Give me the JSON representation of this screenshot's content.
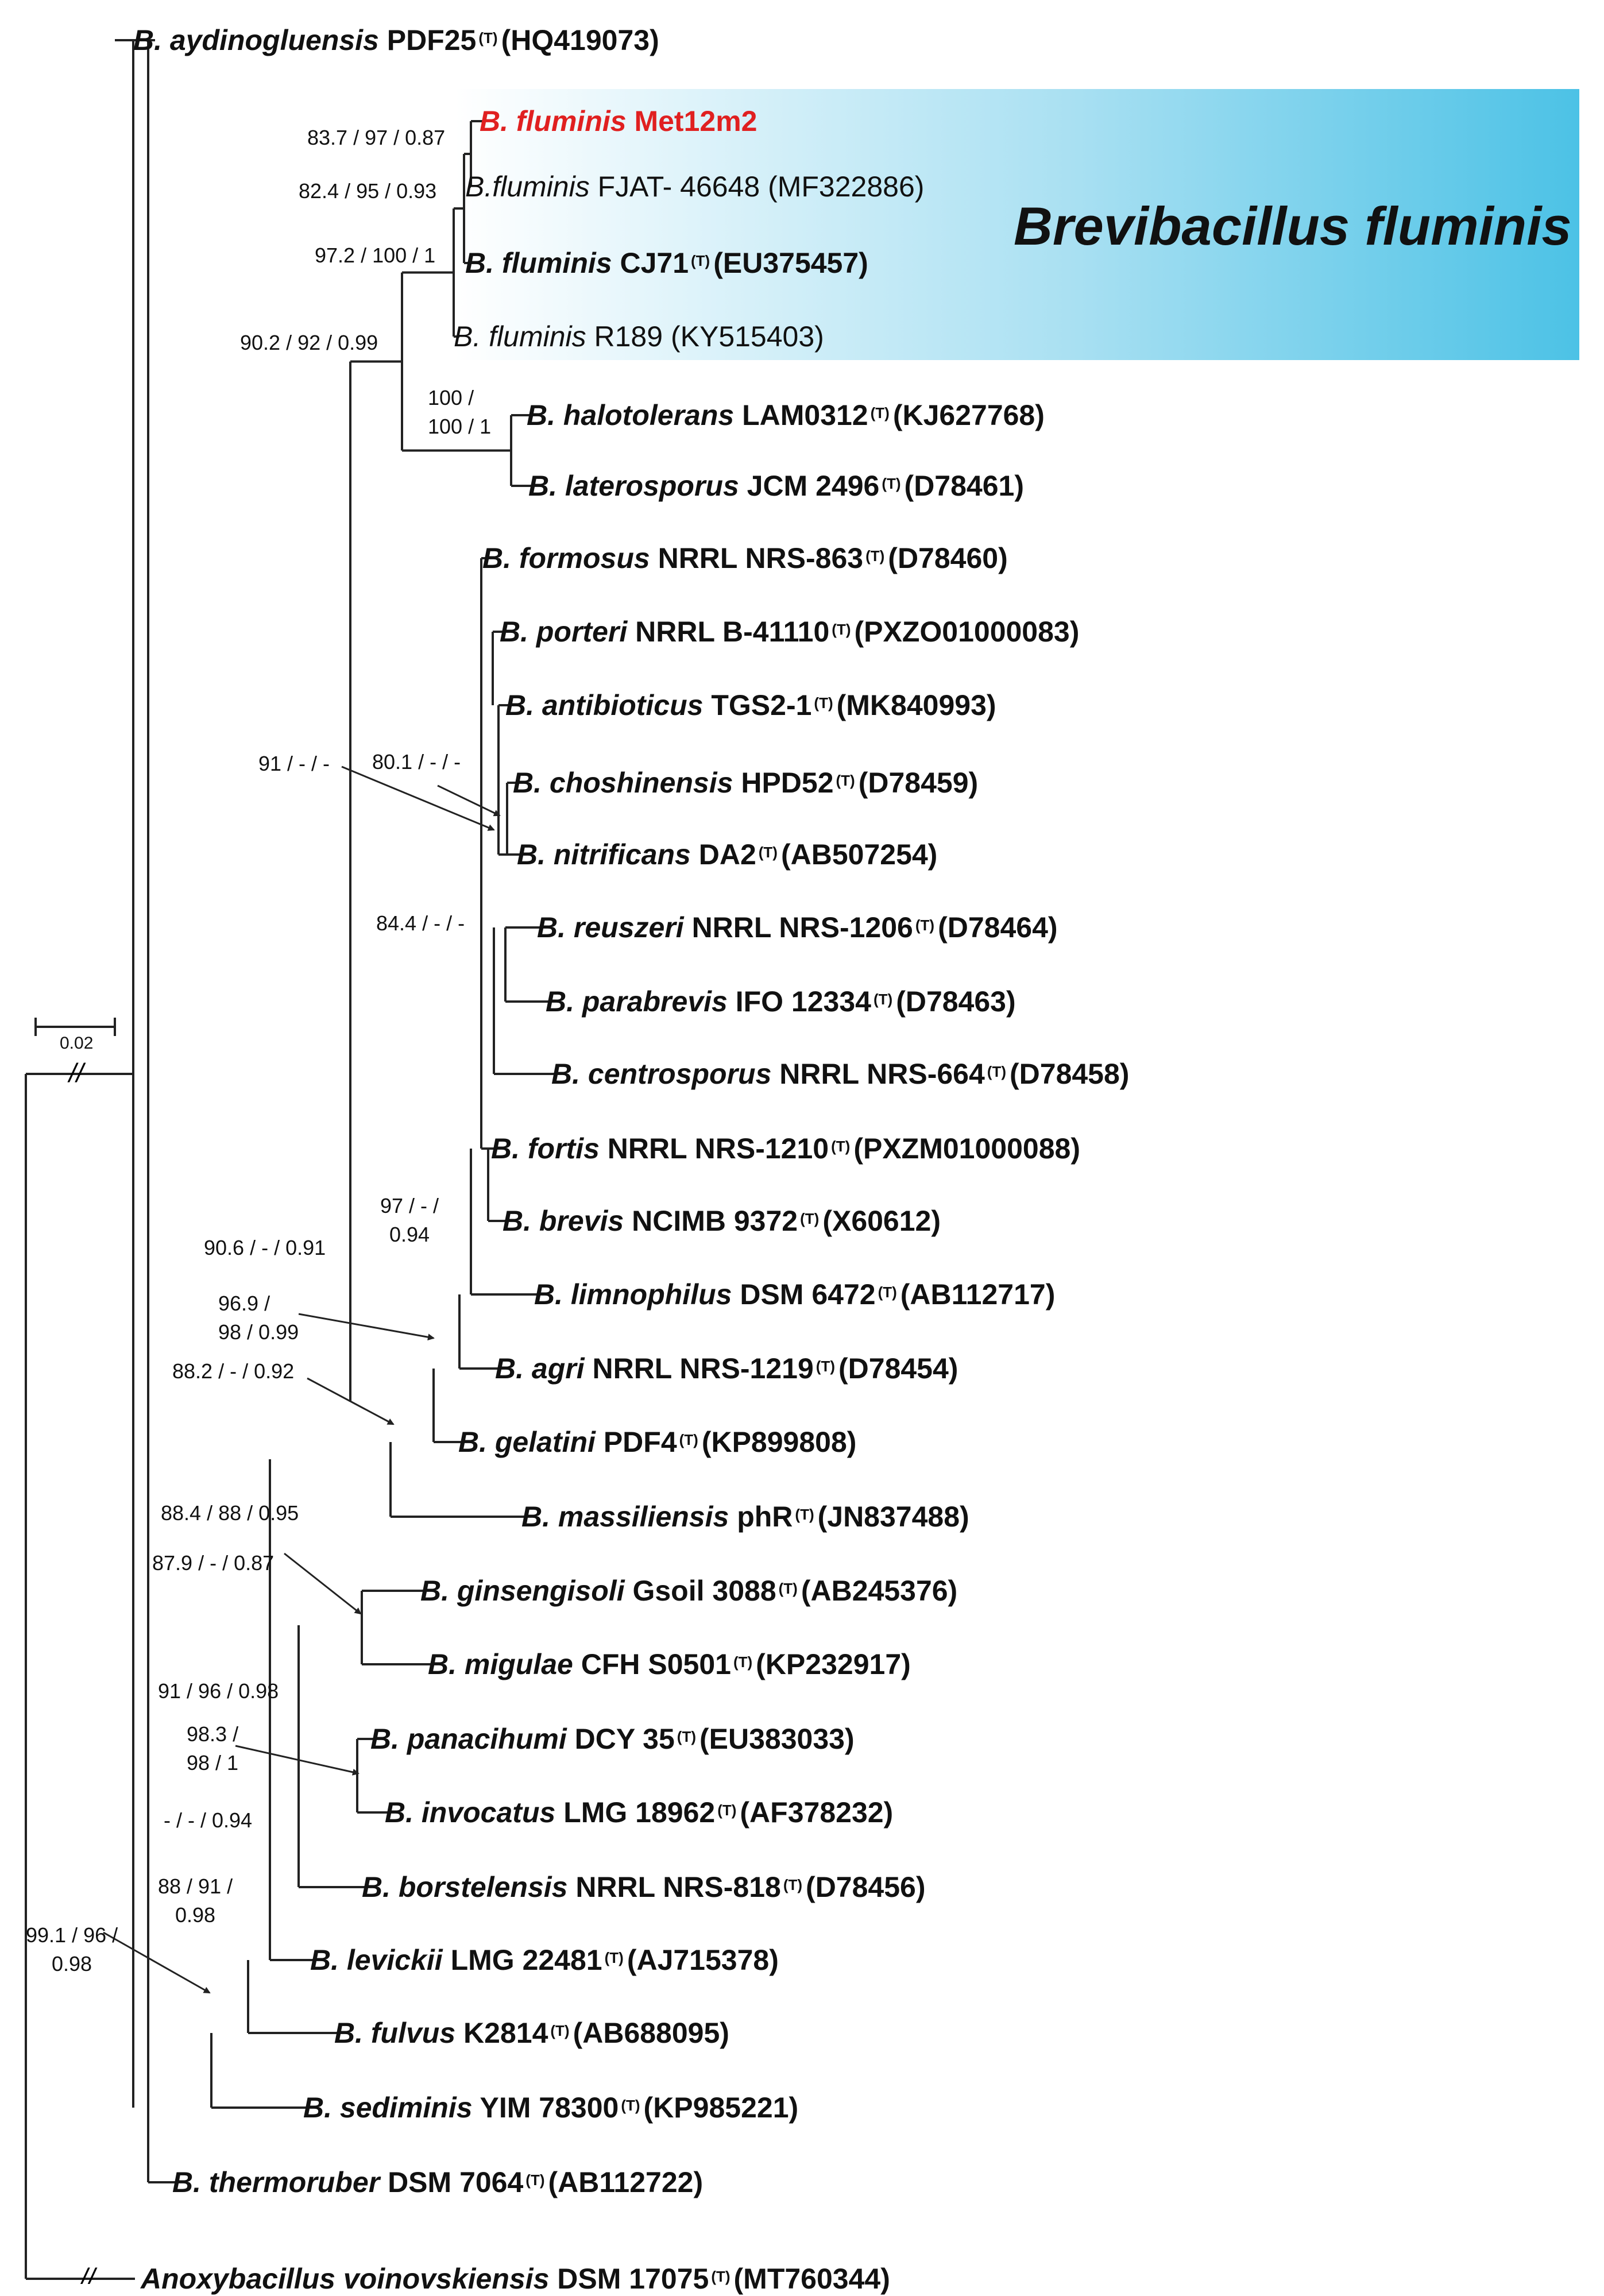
{
  "highlight": {
    "label": "Brevibacillus fluminis",
    "color_left": "#ffffff",
    "color_right": "#4cc2e6"
  },
  "scale_bar": {
    "label": "0.02"
  },
  "break_mark": "//",
  "tips": [
    {
      "italic": "B. aydinogluensis",
      "rest": " PDF25",
      "type_strain": true,
      "accession": "(HQ419073)",
      "style": "bold"
    },
    {
      "italic": "B. fluminis",
      "rest": " Met12m2",
      "type_strain": false,
      "accession": "",
      "style": "red"
    },
    {
      "italic": "B.fluminis",
      "rest": " FJAT- 46648",
      "type_strain": false,
      "accession": "(MF322886)",
      "style": "normal"
    },
    {
      "italic": "B. fluminis",
      "rest": " CJ71",
      "type_strain": true,
      "accession": "(EU375457)",
      "style": "bold"
    },
    {
      "italic": "B. fluminis",
      "rest": " R189",
      "type_strain": false,
      "accession": "(KY515403)",
      "style": "normal"
    },
    {
      "italic": "B. halotolerans",
      "rest": " LAM0312",
      "type_strain": true,
      "accession": "(KJ627768)",
      "style": "bold"
    },
    {
      "italic": "B. laterosporus",
      "rest": " JCM 2496",
      "type_strain": true,
      "accession": "(D78461)",
      "style": "bold"
    },
    {
      "italic": "B. formosus",
      "rest": " NRRL NRS-863",
      "type_strain": true,
      "accession": "(D78460)",
      "style": "bold"
    },
    {
      "italic": "B. porteri",
      "rest": " NRRL B-41110",
      "type_strain": true,
      "accession": "(PXZO01000083)",
      "style": "bold"
    },
    {
      "italic": "B. antibioticus",
      "rest": " TGS2-1",
      "type_strain": true,
      "accession": "(MK840993)",
      "style": "bold"
    },
    {
      "italic": "B. choshinensis",
      "rest": " HPD52",
      "type_strain": true,
      "accession": "(D78459)",
      "style": "bold"
    },
    {
      "italic": "B. nitrificans",
      "rest": " DA2",
      "type_strain": true,
      "accession": "(AB507254)",
      "style": "bold"
    },
    {
      "italic": "B. reuszeri",
      "rest": " NRRL NRS-1206",
      "type_strain": true,
      "accession": "(D78464)",
      "style": "bold"
    },
    {
      "italic": "B. parabrevis",
      "rest": " IFO 12334",
      "type_strain": true,
      "accession": "(D78463)",
      "style": "bold"
    },
    {
      "italic": "B. centrosporus",
      "rest": " NRRL NRS-664",
      "type_strain": true,
      "accession": "(D78458)",
      "style": "bold"
    },
    {
      "italic": "B. fortis",
      "rest": " NRRL NRS-1210",
      "type_strain": true,
      "accession": "(PXZM01000088)",
      "style": "bold"
    },
    {
      "italic": "B. brevis",
      "rest": " NCIMB 9372",
      "type_strain": true,
      "accession": "(X60612)",
      "style": "bold"
    },
    {
      "italic": "B. limnophilus",
      "rest": " DSM 6472",
      "type_strain": true,
      "accession": "(AB112717)",
      "style": "bold"
    },
    {
      "italic": "B. agri",
      "rest": " NRRL NRS-1219",
      "type_strain": true,
      "accession": "(D78454)",
      "style": "bold"
    },
    {
      "italic": "B. gelatini",
      "rest": " PDF4",
      "type_strain": true,
      "accession": "(KP899808)",
      "style": "bold"
    },
    {
      "italic": "B. massiliensis",
      "rest": " phR",
      "type_strain": true,
      "accession": "(JN837488)",
      "style": "bold"
    },
    {
      "italic": "B. ginsengisoli",
      "rest": " Gsoil 3088",
      "type_strain": true,
      "accession": "(AB245376)",
      "style": "bold"
    },
    {
      "italic": "B. migulae",
      "rest": " CFH S0501",
      "type_strain": true,
      "accession": "(KP232917)",
      "style": "bold"
    },
    {
      "italic": "B. panacihumi",
      "rest": " DCY 35",
      "type_strain": true,
      "accession": "(EU383033)",
      "style": "bold"
    },
    {
      "italic": "B. invocatus",
      "rest": " LMG 18962",
      "type_strain": true,
      "accession": "(AF378232)",
      "style": "bold"
    },
    {
      "italic": "B. borstelensis",
      "rest": " NRRL NRS-818",
      "type_strain": true,
      "accession": "(D78456)",
      "style": "bold"
    },
    {
      "italic": "B. levickii",
      "rest": " LMG 22481",
      "type_strain": true,
      "accession": "(AJ715378)",
      "style": "bold"
    },
    {
      "italic": "B. fulvus",
      "rest": " K2814",
      "type_strain": true,
      "accession": "(AB688095)",
      "style": "bold"
    },
    {
      "italic": "B. sediminis",
      "rest": " YIM 78300",
      "type_strain": true,
      "accession": "(KP985221)",
      "style": "bold"
    },
    {
      "italic": "B. thermoruber",
      "rest": " DSM 7064",
      "type_strain": true,
      "accession": "(AB112722)",
      "style": "bold"
    },
    {
      "italic": "Anoxybacillus voinovskiensis",
      "rest": " DSM 17075",
      "type_strain": true,
      "accession": "(MT760344)",
      "style": "bold"
    }
  ],
  "type_mark": "(T)",
  "supports": [
    {
      "id": "s0",
      "lines": [
        "83.7 / 97 / 0.87"
      ]
    },
    {
      "id": "s1",
      "lines": [
        "82.4 / 95 / 0.93"
      ]
    },
    {
      "id": "s2",
      "lines": [
        "97.2 / 100 / 1"
      ]
    },
    {
      "id": "s3",
      "lines": [
        "90.2 / 92 / 0.99"
      ]
    },
    {
      "id": "s4",
      "lines": [
        "100 /",
        "100 / 1"
      ]
    },
    {
      "id": "s5",
      "lines": [
        "91 / - / -"
      ]
    },
    {
      "id": "s6",
      "lines": [
        "80.1 / - / -"
      ]
    },
    {
      "id": "s7",
      "lines": [
        "84.4 / - / -"
      ]
    },
    {
      "id": "s8",
      "lines": [
        "97 / - /",
        "0.94"
      ]
    },
    {
      "id": "s9",
      "lines": [
        "90.6 / - / 0.91"
      ]
    },
    {
      "id": "s10",
      "lines": [
        "96.9 /",
        "98 / 0.99"
      ]
    },
    {
      "id": "s11",
      "lines": [
        "88.2 / - / 0.92"
      ]
    },
    {
      "id": "s12",
      "lines": [
        "88.4 / 88 / 0.95"
      ]
    },
    {
      "id": "s13",
      "lines": [
        "87.9 / - / 0.87"
      ]
    },
    {
      "id": "s14",
      "lines": [
        "91 / 96 / 0.98"
      ]
    },
    {
      "id": "s15",
      "lines": [
        "98.3 /",
        "98 / 1"
      ]
    },
    {
      "id": "s16",
      "lines": [
        "- / - / 0.94"
      ]
    },
    {
      "id": "s17",
      "lines": [
        "88 / 91 /",
        "0.98"
      ]
    },
    {
      "id": "s18",
      "lines": [
        "99.1 / 96 /",
        "0.98"
      ]
    }
  ]
}
